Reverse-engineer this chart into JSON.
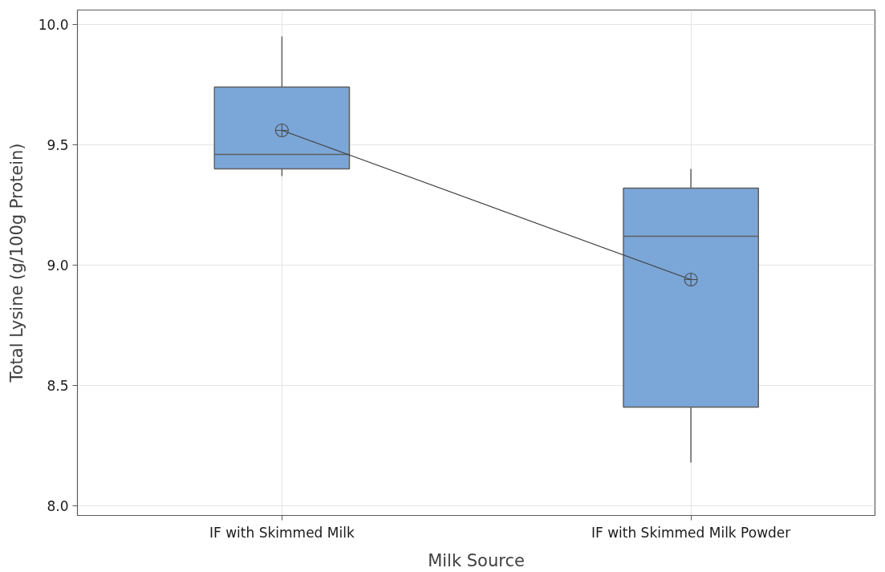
{
  "chart_data": {
    "type": "box",
    "xlabel": "Milk Source",
    "ylabel": "Total Lysine (g/100g Protein)",
    "categories": [
      "IF with Skimmed Milk",
      "IF with Skimmed Milk Powder"
    ],
    "series": [
      {
        "color": "#7ba6d8",
        "boxes": [
          {
            "low": 9.37,
            "q1": 9.4,
            "median": 9.46,
            "q3": 9.74,
            "high": 9.95,
            "mean": 9.56
          },
          {
            "low": 8.18,
            "q1": 8.41,
            "median": 9.12,
            "q3": 9.32,
            "high": 9.4,
            "mean": 8.94
          }
        ]
      },
      {
        "type": "line",
        "color": "#404040",
        "values": [
          9.56,
          8.94
        ]
      }
    ],
    "ylim": [
      7.96,
      10.06
    ],
    "yticks": [
      {
        "value": 8,
        "label": "8.0"
      },
      {
        "value": 8.5,
        "label": "8.5"
      },
      {
        "value": 9,
        "label": "9.0"
      },
      {
        "value": 9.5,
        "label": "9.5"
      },
      {
        "value": 10,
        "label": "10.0"
      }
    ],
    "grid": true
  }
}
